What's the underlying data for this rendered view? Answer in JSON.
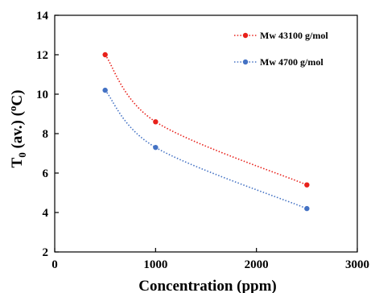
{
  "chart_data": {
    "type": "scatter",
    "xlabel": "Concentration (ppm)",
    "ylabel": {
      "main": "T",
      "sub": "0",
      "mid": " (av.) (",
      "sup": "o",
      "end": "C)"
    },
    "xlim": [
      0,
      3000
    ],
    "ylim": [
      2,
      14
    ],
    "xticks": [
      0,
      1000,
      2000,
      3000
    ],
    "yticks": [
      2,
      4,
      6,
      8,
      10,
      12,
      14
    ],
    "grid": false,
    "legend_position": "top-right",
    "series": [
      {
        "name": "Mw 43100 g/mol",
        "color": "#e8201a",
        "line": "dotted",
        "x": [
          500,
          1000,
          2500
        ],
        "y": [
          12.0,
          8.6,
          5.4
        ]
      },
      {
        "name": "Mw 4700 g/mol",
        "color": "#4472c4",
        "line": "dotted",
        "x": [
          500,
          1000,
          2500
        ],
        "y": [
          10.2,
          7.3,
          4.2
        ]
      }
    ]
  }
}
